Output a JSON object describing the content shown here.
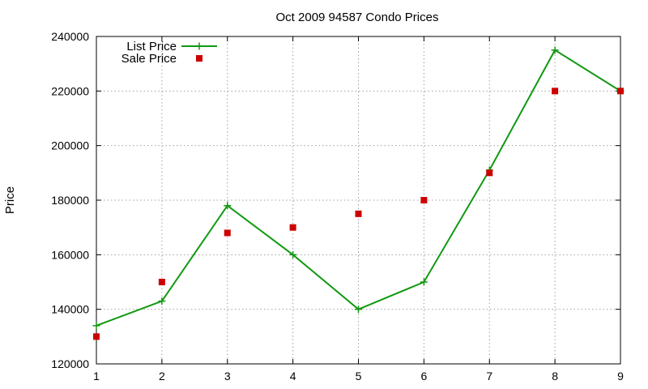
{
  "chart_data": {
    "type": "line",
    "title": "Oct 2009 94587 Condo Prices",
    "xlabel": "",
    "ylabel": "Price",
    "x": [
      1,
      2,
      3,
      4,
      5,
      6,
      7,
      8,
      9
    ],
    "xlim": [
      1,
      9
    ],
    "ylim": [
      120000,
      240000
    ],
    "xticks": [
      1,
      2,
      3,
      4,
      5,
      6,
      7,
      8,
      9
    ],
    "yticks": [
      120000,
      140000,
      160000,
      180000,
      200000,
      220000,
      240000
    ],
    "grid": true,
    "legend_position": "top-left",
    "series": [
      {
        "name": "List Price",
        "style": "line-with-plus-markers",
        "color": "#119911",
        "values": [
          134000,
          143000,
          178000,
          160000,
          140000,
          150000,
          191000,
          235000,
          220000
        ]
      },
      {
        "name": "Sale Price",
        "style": "square-markers",
        "color": "#cc0000",
        "values": [
          130000,
          150000,
          168000,
          170000,
          175000,
          180000,
          190000,
          220000,
          220000
        ]
      }
    ]
  }
}
